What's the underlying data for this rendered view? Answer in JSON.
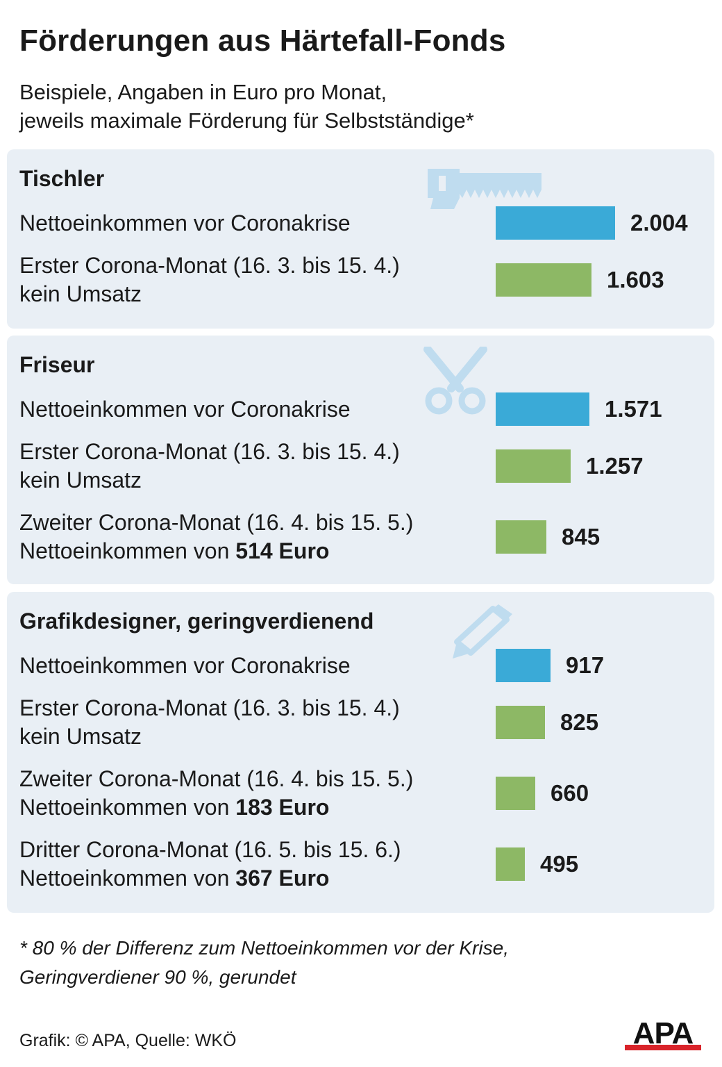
{
  "header": {
    "title": "Förderungen aus Härtefall-Fonds",
    "subtitle_line1": "Beispiele, Angaben in Euro pro Monat,",
    "subtitle_line2": "jeweils maximale Förderung für Selbstständige*"
  },
  "colors": {
    "panel_bg": "#e9eff5",
    "bar_before": "#3aaad7",
    "bar_support": "#8db865",
    "icon": "#bfdcef"
  },
  "chart_data": [
    {
      "type": "bar",
      "title": "Tischler",
      "icon": "saw-icon",
      "categories": [
        {
          "line1": "Nettoeinkommen vor Coronakrise",
          "line2_plain": "",
          "line2_bold": ""
        },
        {
          "line1": "Erster Corona-Monat (16. 3. bis 15. 4.)",
          "line2_plain": "kein Umsatz",
          "line2_bold": ""
        }
      ],
      "values": [
        2004,
        1603
      ],
      "value_labels": [
        "2.004",
        "1.603"
      ],
      "bar_colors": [
        "#3aaad7",
        "#8db865"
      ]
    },
    {
      "type": "bar",
      "title": "Friseur",
      "icon": "scissors-icon",
      "categories": [
        {
          "line1": "Nettoeinkommen vor Coronakrise",
          "line2_plain": "",
          "line2_bold": ""
        },
        {
          "line1": "Erster Corona-Monat (16. 3. bis 15. 4.)",
          "line2_plain": "kein Umsatz",
          "line2_bold": ""
        },
        {
          "line1": "Zweiter Corona-Monat (16. 4. bis 15. 5.)",
          "line2_plain": "Nettoeinkommen von ",
          "line2_bold": "514 Euro"
        }
      ],
      "values": [
        1571,
        1257,
        845
      ],
      "value_labels": [
        "1.571",
        "1.257",
        "845"
      ],
      "bar_colors": [
        "#3aaad7",
        "#8db865",
        "#8db865"
      ]
    },
    {
      "type": "bar",
      "title": "Grafikdesigner, geringverdienend",
      "icon": "pencil-icon",
      "categories": [
        {
          "line1": "Nettoeinkommen vor Coronakrise",
          "line2_plain": "",
          "line2_bold": ""
        },
        {
          "line1": "Erster Corona-Monat (16. 3. bis 15. 4.)",
          "line2_plain": "kein Umsatz",
          "line2_bold": ""
        },
        {
          "line1": "Zweiter Corona-Monat (16. 4. bis 15. 5.)",
          "line2_plain": "Nettoeinkommen von ",
          "line2_bold": "183 Euro"
        },
        {
          "line1": "Dritter Corona-Monat (16. 5. bis 15. 6.)",
          "line2_plain": "Nettoeinkommen von ",
          "line2_bold": "367 Euro"
        }
      ],
      "values": [
        917,
        825,
        660,
        495
      ],
      "value_labels": [
        "917",
        "825",
        "660",
        "495"
      ],
      "bar_colors": [
        "#3aaad7",
        "#8db865",
        "#8db865",
        "#8db865"
      ]
    }
  ],
  "footnote": {
    "line1": "*  80 % der Differenz zum Nettoeinkommen vor der Krise,",
    "line2": "Geringverdiener 90 %, gerundet"
  },
  "credit": "Grafik: © APA, Quelle: WKÖ",
  "logo_text": "APA"
}
